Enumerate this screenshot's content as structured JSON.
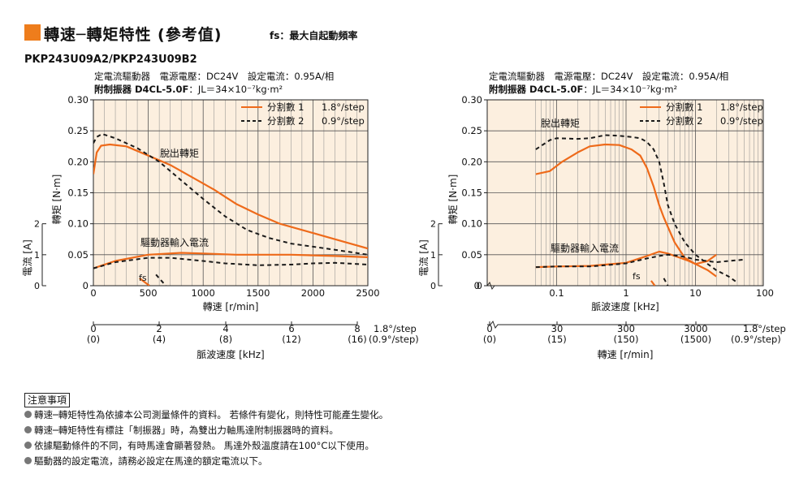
{
  "header": {
    "title": "轉速─轉矩特性 (參考值)",
    "fs_note": "fs：最大自起動頻率",
    "model": "PKP243U09A2/PKP243U09B2"
  },
  "colors": {
    "accent": "#ee7d1c",
    "plot_bg": "#fcefdf",
    "grid": "#333333",
    "curve_full": "#ee6a1a",
    "curve_half": "#1a1a1a"
  },
  "notes": {
    "heading": "注意事項",
    "items": [
      "轉速─轉矩特性為依據本公司測量條件的資料。 若條件有變化，則特性可能產生變化。",
      "轉速─轉矩特性有標註「制振器」時，為雙出力軸馬達附制振器時的資料。",
      "依據驅動條件的不同，有時馬達會顯著發熱。 馬達外殼溫度請在100°C以下使用。",
      "驅動器的設定電流，請務必設定在馬達的額定電流以下。"
    ]
  },
  "chart_data": [
    {
      "type": "line",
      "condition_line1": "定電流驅動器　電源電壓：DC24V　設定電流：0.95A/相",
      "condition_line2_bold": "附制振器 D4CL-5.0F",
      "condition_line2_rest": "：JL＝34×10⁻⁷kg·m²",
      "ylabel_torque": "轉矩 [N·m]",
      "ylabel_current": "電流 [A]",
      "xlabel": "轉速 [r/min]",
      "x_scale": "linear",
      "xlim": [
        0,
        2500
      ],
      "ylim": [
        0,
        0.3
      ],
      "x_ticks": [
        "0",
        "500",
        "1000",
        "1500",
        "2000",
        "2500"
      ],
      "y_ticks": [
        "0",
        "0.05",
        "0.10",
        "0.15",
        "0.20",
        "0.25",
        "0.30"
      ],
      "current_ticks": [
        "0",
        "1",
        "2"
      ],
      "grid": true,
      "legend_position": "top-right",
      "legend": [
        {
          "name": "分割數 1",
          "step": "1.8°/step",
          "style": "solid"
        },
        {
          "name": "分割數 2",
          "step": "0.9°/step",
          "style": "dashed"
        }
      ],
      "annotations": {
        "pullout": "脫出轉矩",
        "driver_current": "驅動器輸入電流",
        "fs": "fs"
      },
      "secondary_axis": {
        "label": "脈波速度 [kHz]",
        "ticks": [
          "0",
          "2",
          "4",
          "6",
          "8"
        ],
        "ticks_half": [
          "(0)",
          "(4)",
          "(8)",
          "(12)",
          "(16)"
        ],
        "unit_full": "1.8°/step",
        "unit_half": "(0.9°/step)"
      },
      "series": [
        {
          "name": "分割數 1 轉矩",
          "style": "solid",
          "x": [
            0,
            30,
            70,
            150,
            300,
            500,
            700,
            900,
            1100,
            1300,
            1500,
            1700,
            2000,
            2300,
            2500
          ],
          "y": [
            0.18,
            0.215,
            0.226,
            0.228,
            0.225,
            0.21,
            0.195,
            0.175,
            0.155,
            0.132,
            0.115,
            0.1,
            0.085,
            0.07,
            0.06
          ]
        },
        {
          "name": "分割數 2 轉矩",
          "style": "dashed",
          "x": [
            0,
            30,
            80,
            200,
            400,
            600,
            800,
            1000,
            1200,
            1400,
            1600,
            1800,
            2000,
            2200,
            2500
          ],
          "y": [
            0.23,
            0.24,
            0.245,
            0.238,
            0.222,
            0.2,
            0.17,
            0.14,
            0.112,
            0.09,
            0.077,
            0.068,
            0.063,
            0.058,
            0.05
          ]
        },
        {
          "name": "分割數 1 電流",
          "style": "solid",
          "x": [
            0,
            200,
            500,
            800,
            1000,
            1300,
            1500,
            1800,
            2000,
            2200,
            2500
          ],
          "y": [
            0.028,
            0.04,
            0.05,
            0.053,
            0.052,
            0.05,
            0.05,
            0.05,
            0.049,
            0.048,
            0.046
          ]
        },
        {
          "name": "分割數 2 電流",
          "style": "dashed",
          "x": [
            0,
            200,
            500,
            700,
            1000,
            1200,
            1500,
            1800,
            2000,
            2200,
            2500
          ],
          "y": [
            0.028,
            0.038,
            0.045,
            0.045,
            0.04,
            0.036,
            0.033,
            0.034,
            0.036,
            0.037,
            0.034
          ]
        },
        {
          "name": "fs 分割數 1",
          "style": "solid",
          "x": [
            420,
            510
          ],
          "y": [
            0.012,
            0.0
          ]
        },
        {
          "name": "fs 分割數 2",
          "style": "dashed",
          "x": [
            570,
            660
          ],
          "y": [
            0.018,
            0.0
          ]
        }
      ]
    },
    {
      "type": "line",
      "condition_line1": "定電流驅動器　電源電壓：DC24V　設定電流：0.95A/相",
      "condition_line2_bold": "附制振器 D4CL-5.0F",
      "condition_line2_rest": "：JL＝34×10⁻⁷kg·m²",
      "ylabel_torque": "轉矩 [N·m]",
      "ylabel_current": "電流 [A]",
      "xlabel": "脈波速度 [kHz]",
      "x_scale": "log",
      "xlim": [
        0.01,
        100
      ],
      "ylim": [
        0,
        0.3
      ],
      "x_ticks": [
        "0.1",
        "1",
        "10",
        "100"
      ],
      "y_ticks": [
        "0",
        "0.05",
        "0.10",
        "0.15",
        "0.20",
        "0.25",
        "0.30"
      ],
      "current_ticks": [
        "0",
        "1",
        "2"
      ],
      "grid": true,
      "legend_position": "top-right",
      "legend": [
        {
          "name": "分割數 1",
          "step": "1.8°/step",
          "style": "solid"
        },
        {
          "name": "分割數 2",
          "step": "0.9°/step",
          "style": "dashed"
        }
      ],
      "annotations": {
        "pullout": "脫出轉矩",
        "driver_current": "驅動器輸入電流",
        "fs": "fs"
      },
      "secondary_axis": {
        "label": "轉速 [r/min]",
        "ticks": [
          "0",
          "30",
          "300",
          "3000"
        ],
        "ticks_half": [
          "(0)",
          "(15)",
          "(150)",
          "(1500)"
        ],
        "unit_full": "1.8°/step",
        "unit_half": "(0.9°/step)"
      },
      "series": [
        {
          "name": "分割數 1 轉矩",
          "style": "solid",
          "x": [
            0.05,
            0.08,
            0.12,
            0.2,
            0.3,
            0.5,
            0.8,
            1.2,
            1.6,
            2.0,
            2.5,
            3.0,
            3.5,
            4.0,
            5.0,
            7.0,
            10,
            15,
            20
          ],
          "y": [
            0.18,
            0.185,
            0.2,
            0.215,
            0.225,
            0.228,
            0.227,
            0.22,
            0.21,
            0.19,
            0.16,
            0.13,
            0.11,
            0.095,
            0.07,
            0.045,
            0.035,
            0.025,
            0.015
          ]
        },
        {
          "name": "分割數 2 轉矩",
          "style": "dashed",
          "x": [
            0.05,
            0.08,
            0.1,
            0.2,
            0.3,
            0.5,
            0.8,
            1.2,
            1.6,
            2.0,
            2.5,
            3.0,
            3.5,
            4.0,
            5.0,
            7.0,
            10,
            15,
            20,
            30,
            40
          ],
          "y": [
            0.22,
            0.235,
            0.238,
            0.237,
            0.238,
            0.243,
            0.242,
            0.24,
            0.238,
            0.232,
            0.22,
            0.2,
            0.165,
            0.13,
            0.1,
            0.07,
            0.05,
            0.035,
            0.025,
            0.015,
            0.005
          ]
        },
        {
          "name": "分割數 1 電流",
          "style": "solid",
          "x": [
            0.05,
            0.1,
            0.3,
            0.5,
            1,
            2,
            3,
            4,
            6,
            8,
            10,
            15,
            20
          ],
          "y": [
            0.03,
            0.031,
            0.032,
            0.034,
            0.037,
            0.048,
            0.055,
            0.052,
            0.045,
            0.04,
            0.035,
            0.04,
            0.05
          ]
        },
        {
          "name": "分割數 2 電流",
          "style": "dashed",
          "x": [
            0.05,
            0.1,
            0.3,
            0.5,
            1,
            2,
            3,
            4,
            6,
            8,
            10,
            20,
            30,
            50
          ],
          "y": [
            0.03,
            0.031,
            0.031,
            0.033,
            0.036,
            0.044,
            0.048,
            0.05,
            0.048,
            0.045,
            0.042,
            0.038,
            0.04,
            0.042
          ]
        },
        {
          "name": "fs 分割數 1",
          "style": "solid",
          "x": [
            2.3,
            2.6
          ],
          "y": [
            0.008,
            0.0
          ]
        },
        {
          "name": "fs 分割數 2",
          "style": "dashed",
          "x": [
            3.5,
            4.0
          ],
          "y": [
            0.012,
            0.0
          ]
        }
      ]
    }
  ]
}
